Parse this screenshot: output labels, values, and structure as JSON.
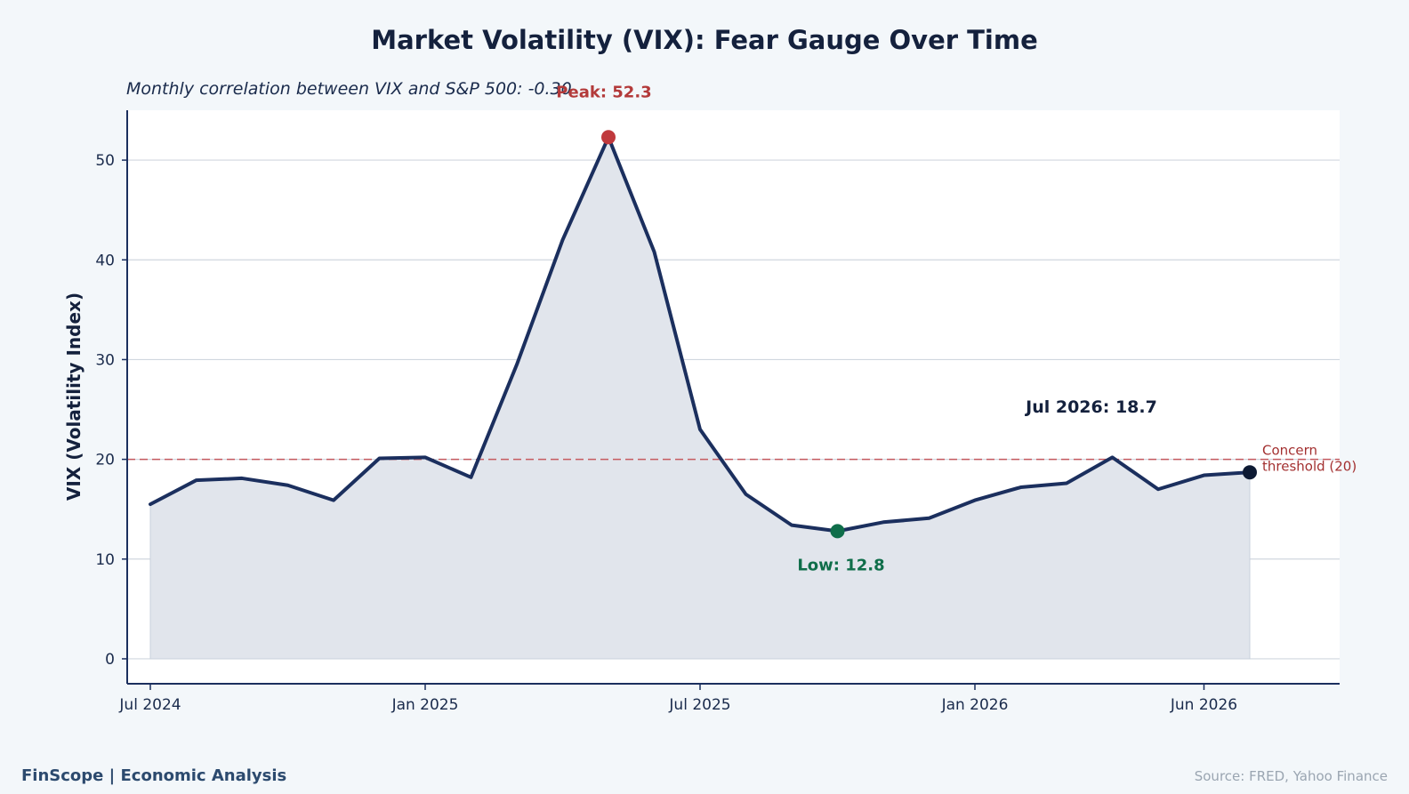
{
  "chart_data": {
    "type": "area",
    "title": "Market Volatility (VIX): Fear Gauge Over Time",
    "subtitle": "Monthly correlation between VIX and S&P 500: -0.30",
    "xlabel": "",
    "ylabel": "VIX (Volatility Index)",
    "x_ticks": [
      "Jul 2024",
      "Jan 2025",
      "Jul 2025",
      "Jan 2026",
      "Jun 2026"
    ],
    "y_ticks": [
      "0",
      "10",
      "20",
      "30",
      "40",
      "50"
    ],
    "ylim": [
      -2.5,
      55
    ],
    "grid": "horizontal",
    "x": [
      "2024-07",
      "2024-08",
      "2024-09",
      "2024-10",
      "2024-11",
      "2024-12",
      "2025-01",
      "2025-02",
      "2025-03",
      "2025-04",
      "2025-05",
      "2025-06",
      "2025-07",
      "2025-08",
      "2025-09",
      "2025-10",
      "2025-11",
      "2025-12",
      "2026-01",
      "2026-02",
      "2026-03",
      "2026-04",
      "2026-05",
      "2026-06",
      "2026-07"
    ],
    "series": [
      {
        "values": [
          15.5,
          17.9,
          18.1,
          17.4,
          15.9,
          20.1,
          20.2,
          18.2,
          29.5,
          42.0,
          52.3,
          40.8,
          23.0,
          16.5,
          13.4,
          12.8,
          13.7,
          14.1,
          15.9,
          17.2,
          17.6,
          20.2,
          17.0,
          18.4,
          18.7
        ]
      }
    ],
    "threshold": {
      "value": 20,
      "label": "Concern threshold (20)"
    },
    "annotations": {
      "peak": {
        "label": "Peak: 52.3",
        "value": 52.3
      },
      "low": {
        "label": "Low: 12.8",
        "value": 12.8
      },
      "last": {
        "label": "Jul 2026: 18.7",
        "value": 18.7
      }
    },
    "colors": {
      "line": "#1b2f5e",
      "fill": "#e1e5ec",
      "peak": "#c0393d",
      "low": "#0f6e4a",
      "last": "#0d1a33",
      "threshold": "#c0393d",
      "grid": "#d0d7df",
      "axis": "#1b2f5e",
      "plot_bg": "#ffffff",
      "page_bg": "#f3f7fa"
    }
  },
  "footer": {
    "left": "FinScope | Economic Analysis",
    "right": "Source: FRED, Yahoo Finance"
  }
}
